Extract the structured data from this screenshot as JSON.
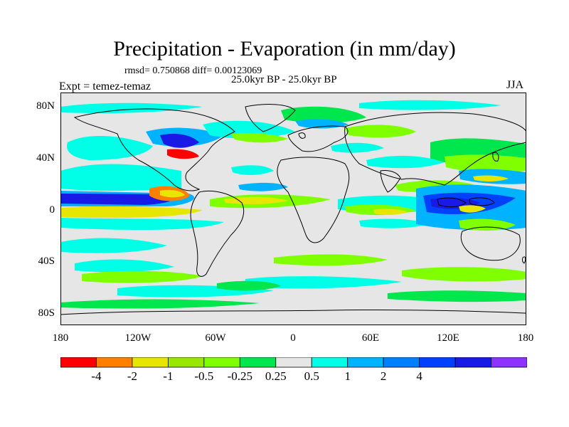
{
  "title": "Precipitation - Evaporation (in mm/day)",
  "stats": "rmsd= 0.750868 diff= 0.00123069",
  "period": "25.0kyr BP - 25.0kyr BP",
  "experiment": "Expt = temez-temaz",
  "season": "JJA",
  "lat_labels": [
    "80N",
    "40N",
    "0",
    "40S",
    "80S"
  ],
  "lon_labels": [
    "180",
    "120W",
    "60W",
    "0",
    "60E",
    "120E",
    "180"
  ],
  "colorbar": {
    "colors": [
      "#ff0000",
      "#ff8000",
      "#e6e600",
      "#99e600",
      "#80ff00",
      "#00e64d",
      "#e6e6e6",
      "#00ffe6",
      "#00b3ff",
      "#0080ff",
      "#0040ff",
      "#1a1ae6",
      "#8c33ff"
    ],
    "labels": [
      "-4",
      "-2",
      "-1",
      "-0.5",
      "-0.25",
      "0.25",
      "0.5",
      "1",
      "2",
      "4"
    ]
  },
  "colors": {
    "land_fill": "#e6e6e6",
    "coast": "#000000"
  }
}
